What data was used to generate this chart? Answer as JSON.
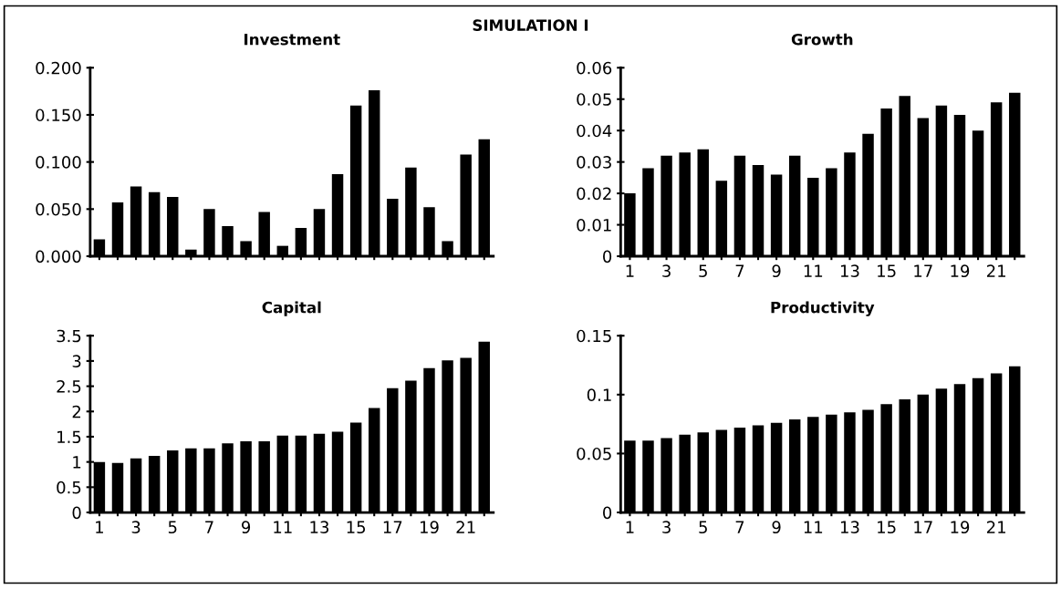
{
  "chart_data": [
    {
      "type": "bar",
      "title": "Investment",
      "annotations": [
        "SIMULATION I"
      ],
      "tick_labels": "y",
      "color": "#000000",
      "categories": [
        "1",
        null,
        "3",
        null,
        "5",
        null,
        "7",
        null,
        "9",
        null,
        "11",
        null,
        "13",
        null,
        "15",
        null,
        "17",
        null,
        "19",
        null,
        "21",
        null
      ],
      "values": [
        0.018,
        0.057,
        0.074,
        0.068,
        0.063,
        0.007,
        0.05,
        0.032,
        0.016,
        0.047,
        0.011,
        0.03,
        0.05,
        0.087,
        0.16,
        0.176,
        0.061,
        0.094,
        0.052,
        0.016,
        0.108,
        0.124
      ],
      "ylim": [
        0,
        0.2
      ],
      "yticks": [
        {
          "value": 0,
          "label": "0.000"
        },
        {
          "value": 0.05,
          "label": "0.050"
        },
        {
          "value": 0.1,
          "label": "0.100"
        },
        {
          "value": 0.15,
          "label": "0.150"
        },
        {
          "value": 0.2,
          "label": "0.200"
        }
      ],
      "grid": false
    },
    {
      "type": "bar",
      "title": "Growth",
      "color": "#000000",
      "categories": [
        "1",
        null,
        "3",
        null,
        "5",
        null,
        "7",
        null,
        "9",
        null,
        "11",
        null,
        "13",
        null,
        "15",
        null,
        "17",
        null,
        "19",
        null,
        "21",
        null
      ],
      "values": [
        0.02,
        0.028,
        0.032,
        0.033,
        0.034,
        0.024,
        0.032,
        0.029,
        0.026,
        0.032,
        0.025,
        0.028,
        0.033,
        0.039,
        0.047,
        0.051,
        0.044,
        0.048,
        0.045,
        0.04,
        0.049,
        0.052
      ],
      "ylim": [
        0,
        0.06
      ],
      "yticks": [
        0,
        0.01,
        0.02,
        0.03,
        0.04,
        0.05,
        0.06
      ],
      "grid": false
    },
    {
      "type": "bar",
      "title": "Capital",
      "color": "#000000",
      "categories": [
        "1",
        null,
        "3",
        null,
        "5",
        null,
        "7",
        null,
        "9",
        null,
        "11",
        null,
        "13",
        null,
        "15",
        null,
        "17",
        null,
        "19",
        null,
        "21",
        null
      ],
      "values": [
        1.0,
        0.98,
        1.07,
        1.12,
        1.23,
        1.27,
        1.27,
        1.37,
        1.41,
        1.41,
        1.52,
        1.52,
        1.56,
        1.6,
        1.78,
        2.07,
        2.46,
        2.61,
        2.86,
        3.01,
        3.06,
        3.38
      ],
      "ylim": [
        0,
        3.5
      ],
      "yticks": [
        0,
        0.5,
        1,
        1.5,
        2,
        2.5,
        3,
        3.5
      ],
      "grid": false
    },
    {
      "type": "bar",
      "title": "Productivity",
      "color": "#000000",
      "categories": [
        "1",
        null,
        "3",
        null,
        "5",
        null,
        "7",
        null,
        "9",
        null,
        "11",
        null,
        "13",
        null,
        "15",
        null,
        "17",
        null,
        "19",
        null,
        "21",
        null
      ],
      "values": [
        0.061,
        0.061,
        0.063,
        0.066,
        0.068,
        0.07,
        0.072,
        0.074,
        0.076,
        0.079,
        0.081,
        0.083,
        0.085,
        0.087,
        0.092,
        0.096,
        0.1,
        0.105,
        0.109,
        0.114,
        0.118,
        0.124
      ],
      "ylim": [
        0,
        0.15
      ],
      "yticks": [
        0,
        0.05,
        0.1,
        0.15
      ],
      "grid": false
    }
  ]
}
